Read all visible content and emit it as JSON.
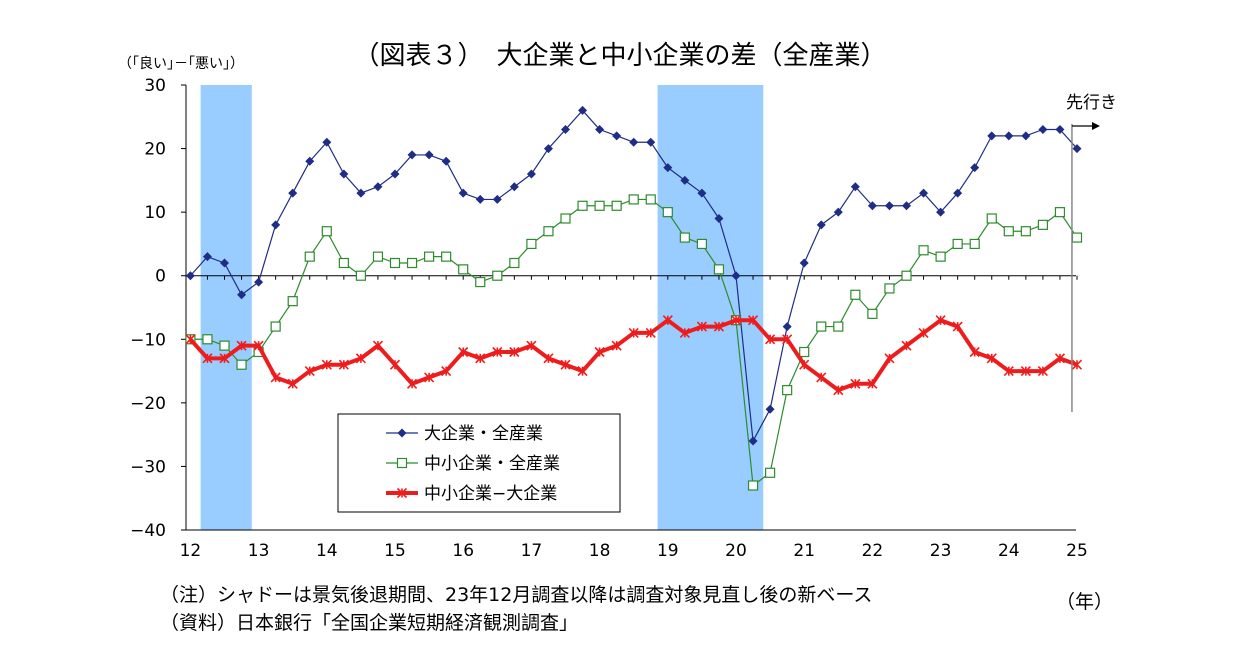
{
  "chart_data": {
    "type": "line",
    "title": "（図表３）　大企業と中小企業の差（全産業）",
    "ylabel": "（｢良い｣－｢悪い｣）",
    "xlabel": "（年）",
    "ylim": [
      -40,
      30
    ],
    "yticks": [
      30,
      20,
      10,
      0,
      -10,
      -20,
      -30,
      -40
    ],
    "ytick_labels": [
      "30",
      "20",
      "10",
      "0",
      "−10",
      "−20",
      "−30",
      "−40"
    ],
    "xlim": [
      2012,
      2025.25
    ],
    "xticks": [
      {
        "x": 2012,
        "label": "12"
      },
      {
        "x": 2013,
        "label": "13"
      },
      {
        "x": 2014,
        "label": "14"
      },
      {
        "x": 2015,
        "label": "15"
      },
      {
        "x": 2016,
        "label": "16"
      },
      {
        "x": 2017,
        "label": "17"
      },
      {
        "x": 2018,
        "label": "18"
      },
      {
        "x": 2019,
        "label": "19"
      },
      {
        "x": 2020,
        "label": "20"
      },
      {
        "x": 2021,
        "label": "21"
      },
      {
        "x": 2022,
        "label": "22"
      },
      {
        "x": 2023,
        "label": "23"
      },
      {
        "x": 2024,
        "label": "24"
      },
      {
        "x": 2025,
        "label": "25"
      }
    ],
    "recessions": [
      {
        "start": 2012.15,
        "end": 2012.9
      },
      {
        "start": 2018.85,
        "end": 2020.4
      }
    ],
    "x": [
      2012.0,
      2012.25,
      2012.5,
      2012.75,
      2013.0,
      2013.25,
      2013.5,
      2013.75,
      2014.0,
      2014.25,
      2014.5,
      2014.75,
      2015.0,
      2015.25,
      2015.5,
      2015.75,
      2016.0,
      2016.25,
      2016.5,
      2016.75,
      2017.0,
      2017.25,
      2017.5,
      2017.75,
      2018.0,
      2018.25,
      2018.5,
      2018.75,
      2019.0,
      2019.25,
      2019.5,
      2019.75,
      2020.0,
      2020.25,
      2020.5,
      2020.75,
      2021.0,
      2021.25,
      2021.5,
      2021.75,
      2022.0,
      2022.25,
      2022.5,
      2022.75,
      2023.0,
      2023.25,
      2023.5,
      2023.75,
      2024.0,
      2024.25,
      2024.5,
      2024.75,
      2025.0
    ],
    "series": [
      {
        "name": "大企業・全産業",
        "color": "#1f2d86",
        "marker": "diamond",
        "values": [
          0,
          3,
          2,
          -3,
          -1,
          8,
          13,
          18,
          21,
          16,
          13,
          14,
          16,
          19,
          19,
          18,
          13,
          12,
          12,
          14,
          16,
          20,
          23,
          26,
          23,
          22,
          21,
          21,
          17,
          15,
          13,
          9,
          0,
          -26,
          -21,
          -8,
          2,
          8,
          10,
          14,
          11,
          11,
          11,
          13,
          10,
          13,
          17,
          22,
          22,
          22,
          23,
          23,
          20
        ]
      },
      {
        "name": "中小企業・全産業",
        "color": "#2e8b2e",
        "marker": "square",
        "values": [
          -10,
          -10,
          -11,
          -14,
          -12,
          -8,
          -4,
          3,
          7,
          2,
          0,
          3,
          2,
          2,
          3,
          3,
          1,
          -1,
          0,
          2,
          5,
          7,
          9,
          11,
          11,
          11,
          12,
          12,
          10,
          6,
          5,
          1,
          -7,
          -33,
          -31,
          -18,
          -12,
          -8,
          -8,
          -3,
          -6,
          -2,
          0,
          4,
          3,
          5,
          5,
          9,
          7,
          7,
          8,
          10,
          6
        ]
      },
      {
        "name": "中小企業−大企業",
        "color": "#ee1c1c",
        "marker": "star",
        "values": [
          -10,
          -13,
          -13,
          -11,
          -11,
          -16,
          -17,
          -15,
          -14,
          -14,
          -13,
          -11,
          -14,
          -17,
          -16,
          -15,
          -12,
          -13,
          -12,
          -12,
          -11,
          -13,
          -14,
          -15,
          -12,
          -11,
          -9,
          -9,
          -7,
          -9,
          -8,
          -8,
          -7,
          -7,
          -10,
          -10,
          -14,
          -16,
          -18,
          -17,
          -17,
          -13,
          -11,
          -9,
          -7,
          -8,
          -12,
          -13,
          -15,
          -15,
          -15,
          -13,
          -14
        ]
      }
    ],
    "forecast_label": "先行き",
    "grid": false,
    "legend_position": "lower-center"
  },
  "notes": [
    "（注）シャドーは景気後退期間、23年12月調査以降は調査対象見直し後の新ベース",
    "（資料）日本銀行「全国企業短期経済観測調査」"
  ]
}
